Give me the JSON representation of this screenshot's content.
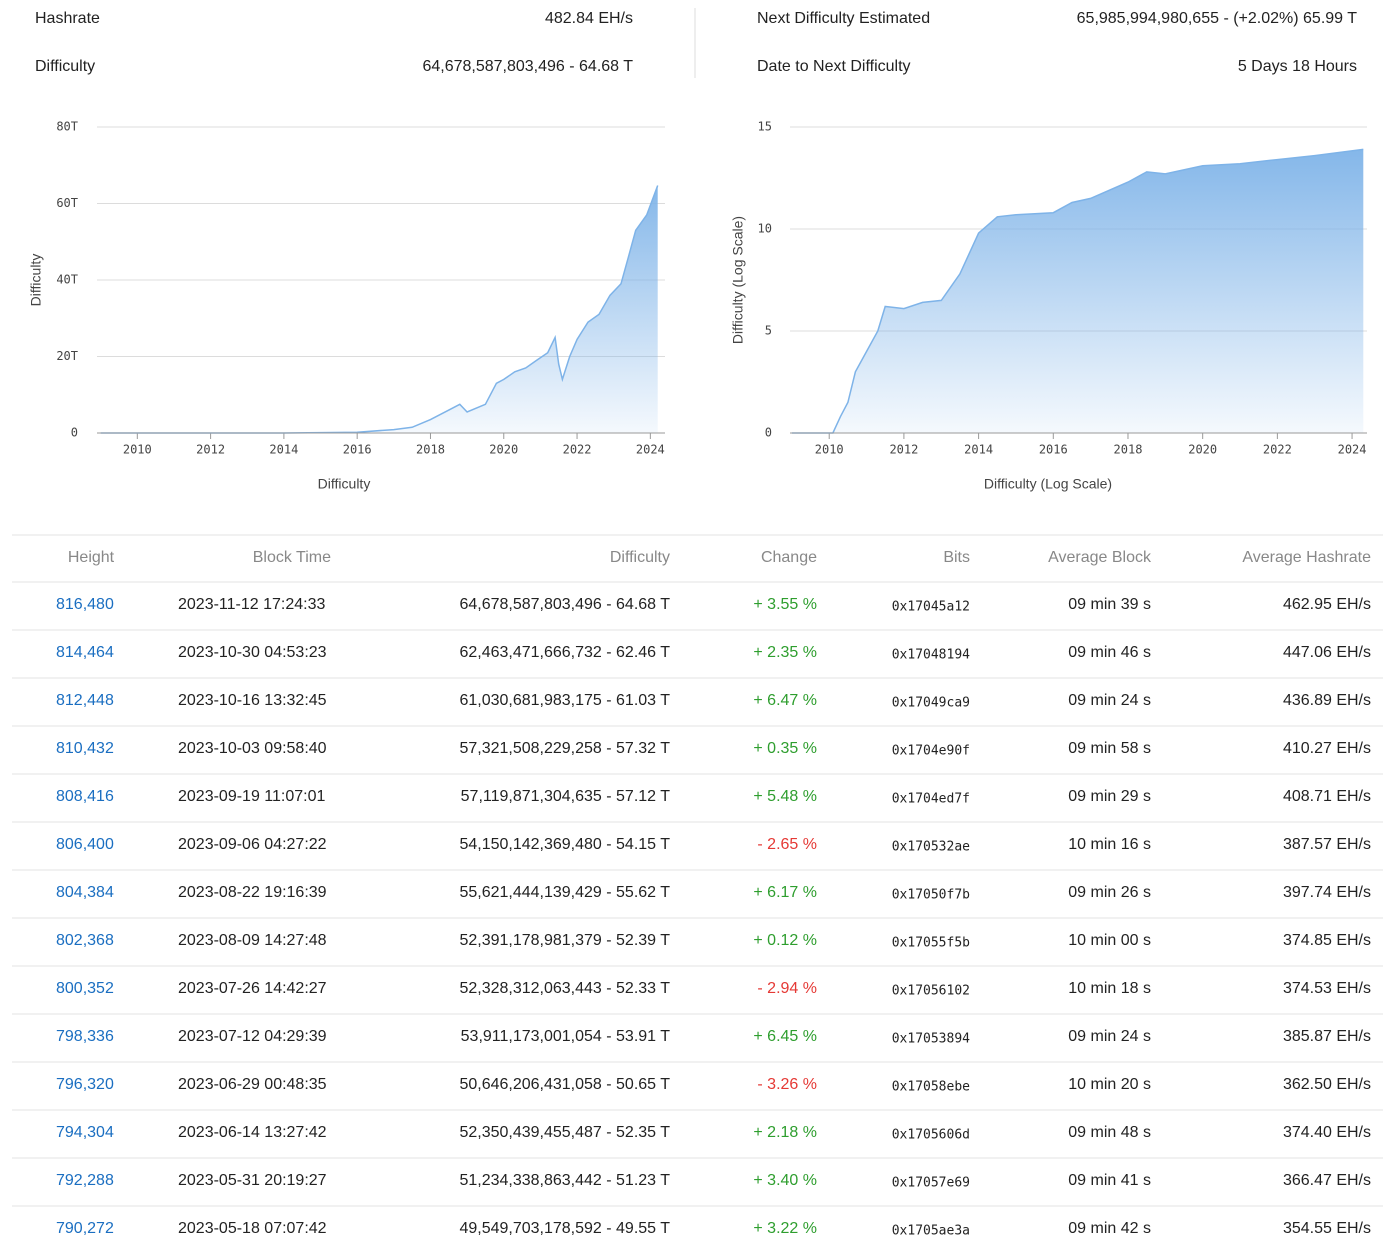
{
  "stats": {
    "hashrate": {
      "label": "Hashrate",
      "value": "482.84 EH/s"
    },
    "difficulty": {
      "label": "Difficulty",
      "value": "64,678,587,803,496 - 64.68 T"
    },
    "next_difficulty": {
      "label": "Next Difficulty Estimated",
      "value": "65,985,994,980,655 - (+2.02%) 65.99 T"
    },
    "date_to_next": {
      "label": "Date to Next Difficulty",
      "value": "5 Days 18 Hours"
    }
  },
  "chart_data": [
    {
      "type": "area",
      "y_label": "Difficulty",
      "x_label": "Difficulty",
      "color": "#7eb3e8",
      "grid": true,
      "x": [
        2009,
        2012,
        2014,
        2016,
        2017,
        2017.5,
        2018,
        2018.5,
        2018.8,
        2019,
        2019.5,
        2019.8,
        2020,
        2020.3,
        2020.6,
        2020.9,
        2021.2,
        2021.4,
        2021.5,
        2021.6,
        2021.8,
        2022,
        2022.3,
        2022.6,
        2022.9,
        2023.2,
        2023.4,
        2023.6,
        2023.9,
        2024.2
      ],
      "values": [
        0,
        0,
        0.005,
        0.2,
        0.9,
        1.5,
        3.5,
        6,
        7.5,
        5.5,
        7.5,
        13,
        14,
        16,
        17,
        19,
        21,
        25,
        18,
        14,
        20,
        24.5,
        29,
        31,
        36,
        39,
        46,
        53,
        57,
        64.7
      ],
      "xlim": [
        2008.9,
        2024.4
      ],
      "xticks": [
        2010,
        2012,
        2014,
        2016,
        2018,
        2020,
        2022,
        2024
      ],
      "ylim": [
        0,
        80
      ],
      "yticks": [
        0,
        {
          "value": 20,
          "label": "20T"
        },
        {
          "value": 40,
          "label": "40T"
        },
        {
          "value": 60,
          "label": "60T"
        },
        {
          "value": 80,
          "label": "80T"
        }
      ]
    },
    {
      "type": "area",
      "y_label": "Difficulty (Log Scale)",
      "x_label": "Difficulty (Log Scale)",
      "color": "#7eb3e8",
      "grid": true,
      "x": [
        2009,
        2010.1,
        2010.3,
        2010.5,
        2010.7,
        2011,
        2011.3,
        2011.5,
        2012,
        2012.5,
        2013,
        2013.5,
        2014,
        2014.5,
        2015,
        2016,
        2016.5,
        2017,
        2018,
        2018.5,
        2019,
        2020,
        2021,
        2022,
        2023,
        2024.3
      ],
      "values": [
        0,
        0,
        0.8,
        1.5,
        3,
        4,
        5,
        6.2,
        6.1,
        6.4,
        6.5,
        7.8,
        9.8,
        10.6,
        10.7,
        10.8,
        11.3,
        11.5,
        12.3,
        12.8,
        12.7,
        13.1,
        13.2,
        13.4,
        13.6,
        13.9
      ],
      "xlim": [
        2008.95,
        2024.4
      ],
      "xticks": [
        2010,
        2012,
        2014,
        2016,
        2018,
        2020,
        2022,
        2024
      ],
      "ylim": [
        0,
        15
      ],
      "yticks": [
        0,
        5,
        10,
        15
      ]
    }
  ],
  "table": {
    "columns": [
      "Height",
      "Block Time",
      "Difficulty",
      "Change",
      "Bits",
      "Average Block",
      "Average Hashrate"
    ],
    "rows": [
      [
        "816,480",
        "2023-11-12 17:24:33",
        "64,678,587,803,496 - 64.68 T",
        "+ 3.55 %",
        "0x17045a12",
        "09 min 39 s",
        "462.95 EH/s"
      ],
      [
        "814,464",
        "2023-10-30 04:53:23",
        "62,463,471,666,732 - 62.46 T",
        "+ 2.35 %",
        "0x17048194",
        "09 min 46 s",
        "447.06 EH/s"
      ],
      [
        "812,448",
        "2023-10-16 13:32:45",
        "61,030,681,983,175 - 61.03 T",
        "+ 6.47 %",
        "0x17049ca9",
        "09 min 24 s",
        "436.89 EH/s"
      ],
      [
        "810,432",
        "2023-10-03 09:58:40",
        "57,321,508,229,258 - 57.32 T",
        "+ 0.35 %",
        "0x1704e90f",
        "09 min 58 s",
        "410.27 EH/s"
      ],
      [
        "808,416",
        "2023-09-19 11:07:01",
        "57,119,871,304,635 - 57.12 T",
        "+ 5.48 %",
        "0x1704ed7f",
        "09 min 29 s",
        "408.71 EH/s"
      ],
      [
        "806,400",
        "2023-09-06 04:27:22",
        "54,150,142,369,480 - 54.15 T",
        "- 2.65 %",
        "0x170532ae",
        "10 min 16 s",
        "387.57 EH/s"
      ],
      [
        "804,384",
        "2023-08-22 19:16:39",
        "55,621,444,139,429 - 55.62 T",
        "+ 6.17 %",
        "0x17050f7b",
        "09 min 26 s",
        "397.74 EH/s"
      ],
      [
        "802,368",
        "2023-08-09 14:27:48",
        "52,391,178,981,379 - 52.39 T",
        "+ 0.12 %",
        "0x17055f5b",
        "10 min 00 s",
        "374.85 EH/s"
      ],
      [
        "800,352",
        "2023-07-26 14:42:27",
        "52,328,312,063,443 - 52.33 T",
        "- 2.94 %",
        "0x17056102",
        "10 min 18 s",
        "374.53 EH/s"
      ],
      [
        "798,336",
        "2023-07-12 04:29:39",
        "53,911,173,001,054 - 53.91 T",
        "+ 6.45 %",
        "0x17053894",
        "09 min 24 s",
        "385.87 EH/s"
      ],
      [
        "796,320",
        "2023-06-29 00:48:35",
        "50,646,206,431,058 - 50.65 T",
        "- 3.26 %",
        "0x17058ebe",
        "10 min 20 s",
        "362.50 EH/s"
      ],
      [
        "794,304",
        "2023-06-14 13:27:42",
        "52,350,439,455,487 - 52.35 T",
        "+ 2.18 %",
        "0x1705606d",
        "09 min 48 s",
        "374.40 EH/s"
      ],
      [
        "792,288",
        "2023-05-31 20:19:27",
        "51,234,338,863,442 - 51.23 T",
        "+ 3.40 %",
        "0x17057e69",
        "09 min 41 s",
        "366.47 EH/s"
      ],
      [
        "790,272",
        "2023-05-18 07:07:42",
        "49,549,703,178,592 - 49.55 T",
        "+ 3.22 %",
        "0x1705ae3a",
        "09 min 42 s",
        "354.55 EH/s"
      ]
    ]
  }
}
